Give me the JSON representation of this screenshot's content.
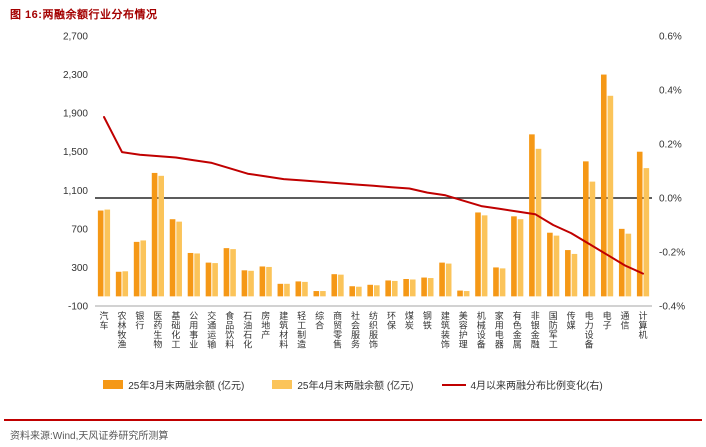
{
  "header": {
    "title": "图 16:两融余额行业分布情况"
  },
  "footer": {
    "source_label": "资料来源:",
    "source_text": "Wind,天风证券研究所测算"
  },
  "colors": {
    "bar_mar": "#F59816",
    "bar_apr": "#FBC45A",
    "line": "#C00000",
    "title": "#A40000",
    "rule": "#C00000",
    "axis_text": "#333333",
    "zero_line": "#262626",
    "axis_line": "#A6A6A6"
  },
  "legend": [
    {
      "label": "25年3月末两融余额 (亿元)",
      "type": "bar",
      "color_key": "bar_mar"
    },
    {
      "label": "25年4月末两融余额 (亿元)",
      "type": "bar",
      "color_key": "bar_apr"
    },
    {
      "label": "4月以来两融分布比例变化(右)",
      "type": "line",
      "color_key": "line"
    }
  ],
  "axes": {
    "left_ticks": [
      {
        "value": 2700,
        "label": "2,700"
      },
      {
        "value": 2300,
        "label": "2,300"
      },
      {
        "value": 1900,
        "label": "1,900"
      },
      {
        "value": 1500,
        "label": "1,500"
      },
      {
        "value": 1100,
        "label": "1,100"
      },
      {
        "value": 700,
        "label": "700"
      },
      {
        "value": 300,
        "label": "300"
      },
      {
        "value": -100,
        "label": "-100"
      }
    ],
    "right_ticks": [
      {
        "value": 0.6,
        "label": "0.6%"
      },
      {
        "value": 0.4,
        "label": "0.4%"
      },
      {
        "value": 0.2,
        "label": "0.2%"
      },
      {
        "value": 0.0,
        "label": "0.0%"
      },
      {
        "value": -0.2,
        "label": "-0.2%"
      },
      {
        "value": -0.4,
        "label": "-0.4%"
      }
    ]
  },
  "chart_data": {
    "type": "bar",
    "note": "grouped bars on left axis (亿元) with change line on right axis (%)",
    "categories": [
      "汽车",
      "农林牧渔",
      "银行",
      "医药生物",
      "基础化工",
      "公用事业",
      "交通运输",
      "食品饮料",
      "石油石化",
      "房地产",
      "建筑材料",
      "轻工制造",
      "综合",
      "商贸零售",
      "社会服务",
      "纺织服饰",
      "环保",
      "煤炭",
      "钢铁",
      "建筑装饰",
      "美容护理",
      "机械设备",
      "家用电器",
      "有色金属",
      "非银金融",
      "国防军工",
      "传媒",
      "电力设备",
      "电子",
      "通信",
      "计算机"
    ],
    "series": [
      {
        "name": "25年3月末两融余额(亿元)",
        "kind": "bar",
        "axis": "left",
        "values": [
          890,
          255,
          565,
          1280,
          800,
          450,
          350,
          500,
          270,
          310,
          130,
          155,
          55,
          230,
          105,
          120,
          165,
          180,
          195,
          350,
          60,
          870,
          300,
          830,
          1680,
          660,
          480,
          1400,
          2300,
          700,
          1500
        ]
      },
      {
        "name": "25年4月末两融余额(亿元)",
        "kind": "bar",
        "axis": "left",
        "values": [
          900,
          260,
          580,
          1250,
          775,
          445,
          345,
          490,
          265,
          305,
          130,
          150,
          55,
          225,
          100,
          115,
          160,
          175,
          190,
          340,
          55,
          840,
          290,
          800,
          1530,
          630,
          440,
          1190,
          2080,
          650,
          1330
        ]
      },
      {
        "name": "4月以来两融分布比例变化(右)",
        "kind": "line",
        "axis": "right",
        "values": [
          0.3,
          0.17,
          0.16,
          0.155,
          0.15,
          0.14,
          0.13,
          0.11,
          0.09,
          0.08,
          0.07,
          0.065,
          0.06,
          0.055,
          0.05,
          0.045,
          0.04,
          0.035,
          0.02,
          0.01,
          -0.01,
          -0.03,
          -0.04,
          -0.05,
          -0.06,
          -0.1,
          -0.13,
          -0.17,
          -0.21,
          -0.25,
          -0.28
        ]
      }
    ],
    "left_axis": {
      "min": -100,
      "max": 2700,
      "step": 400
    },
    "right_axis": {
      "min": -0.4,
      "max": 0.6,
      "step": 0.2
    }
  }
}
